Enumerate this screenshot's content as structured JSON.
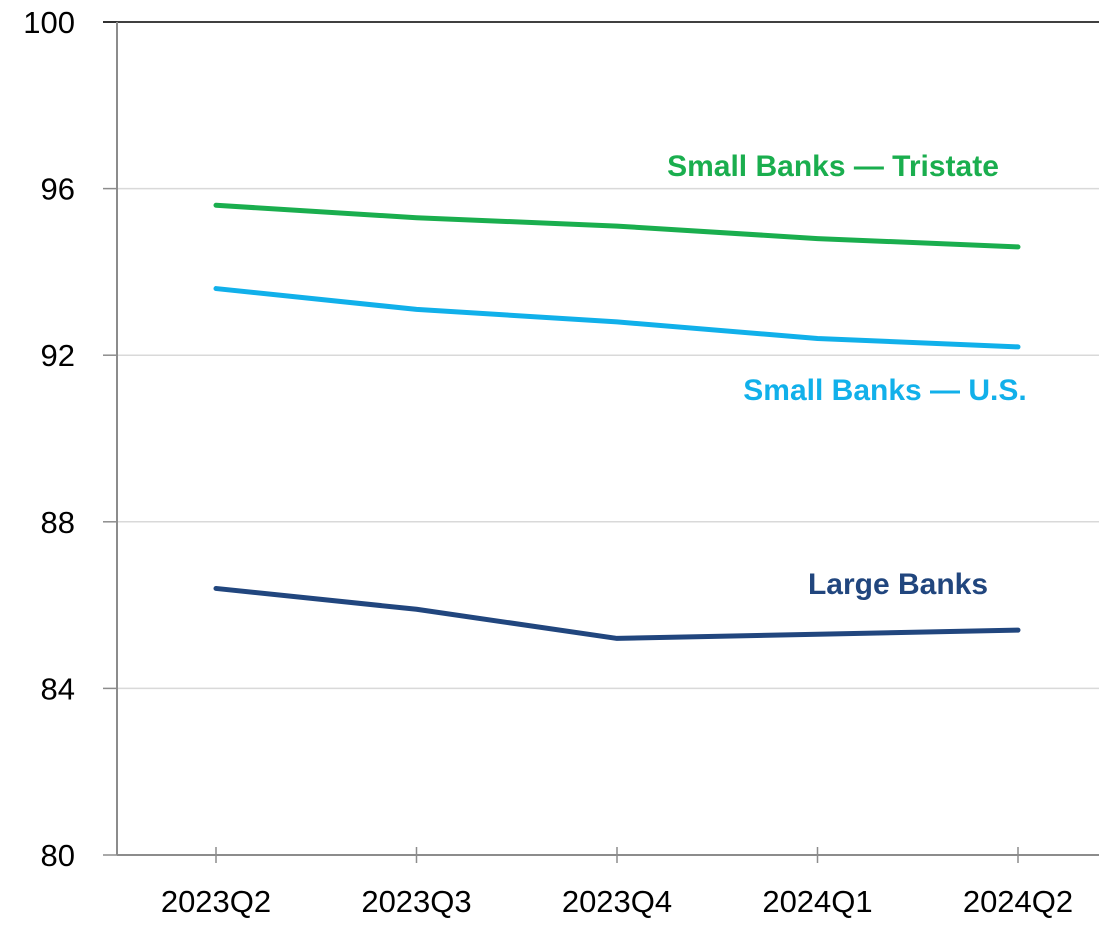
{
  "chart_data": {
    "type": "line",
    "title": "",
    "xlabel": "",
    "ylabel": "",
    "categories": [
      "2023Q2",
      "2023Q3",
      "2023Q4",
      "2024Q1",
      "2024Q2"
    ],
    "ylim": [
      80,
      100
    ],
    "yticks": [
      80,
      84,
      88,
      92,
      96,
      100
    ],
    "grid": true,
    "legend": "inline labels",
    "series": [
      {
        "name": "Small Banks — Tristate",
        "color": "#1aae4e",
        "values": [
          95.6,
          95.3,
          95.1,
          94.8,
          94.6
        ]
      },
      {
        "name": "Small Banks — U.S.",
        "color": "#11b0ea",
        "values": [
          93.6,
          93.1,
          92.8,
          92.4,
          92.2
        ]
      },
      {
        "name": "Large Banks",
        "color": "#21467e",
        "values": [
          86.4,
          85.9,
          85.2,
          85.3,
          85.4
        ]
      }
    ]
  }
}
